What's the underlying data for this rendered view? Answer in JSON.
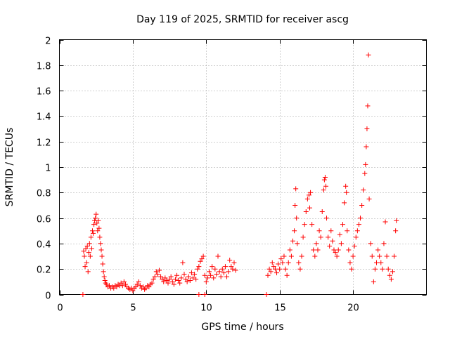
{
  "chart_data": {
    "type": "scatter",
    "title": "Day 119 of 2025, SRMTID for receiver ascg",
    "xlabel": "GPS time / hours",
    "ylabel": "SRMTID / TECUs",
    "xlim": [
      0,
      25
    ],
    "ylim": [
      0,
      2
    ],
    "xticks": [
      0,
      5,
      10,
      15,
      20
    ],
    "yticks": [
      0,
      0.2,
      0.4,
      0.6,
      0.8,
      1,
      1.2,
      1.4,
      1.6,
      1.8,
      2
    ],
    "grid": true,
    "marker": "+",
    "color": "#ff0000",
    "series": [
      {
        "name": "SRMTID",
        "points": [
          [
            1.6,
            0.0
          ],
          [
            1.65,
            0.34
          ],
          [
            1.7,
            0.3
          ],
          [
            1.75,
            0.22
          ],
          [
            1.8,
            0.36
          ],
          [
            1.85,
            0.25
          ],
          [
            1.9,
            0.38
          ],
          [
            1.95,
            0.18
          ],
          [
            2.0,
            0.33
          ],
          [
            2.05,
            0.4
          ],
          [
            2.1,
            0.3
          ],
          [
            2.15,
            0.45
          ],
          [
            2.2,
            0.36
          ],
          [
            2.25,
            0.5
          ],
          [
            2.3,
            0.48
          ],
          [
            2.35,
            0.55
          ],
          [
            2.4,
            0.58
          ],
          [
            2.45,
            0.6
          ],
          [
            2.5,
            0.63
          ],
          [
            2.55,
            0.56
          ],
          [
            2.6,
            0.5
          ],
          [
            2.65,
            0.58
          ],
          [
            2.7,
            0.52
          ],
          [
            2.75,
            0.45
          ],
          [
            2.8,
            0.4
          ],
          [
            2.85,
            0.35
          ],
          [
            2.9,
            0.3
          ],
          [
            2.95,
            0.24
          ],
          [
            3.0,
            0.18
          ],
          [
            3.05,
            0.14
          ],
          [
            3.1,
            0.11
          ],
          [
            3.15,
            0.09
          ],
          [
            3.2,
            0.08
          ],
          [
            3.3,
            0.06
          ],
          [
            3.4,
            0.07
          ],
          [
            3.5,
            0.05
          ],
          [
            3.6,
            0.06
          ],
          [
            3.7,
            0.05
          ],
          [
            3.8,
            0.07
          ],
          [
            3.9,
            0.06
          ],
          [
            4.0,
            0.08
          ],
          [
            4.1,
            0.07
          ],
          [
            4.2,
            0.09
          ],
          [
            4.3,
            0.07
          ],
          [
            4.4,
            0.1
          ],
          [
            4.5,
            0.08
          ],
          [
            4.6,
            0.06
          ],
          [
            4.7,
            0.05
          ],
          [
            4.8,
            0.04
          ],
          [
            4.9,
            0.05
          ],
          [
            5.0,
            0.03
          ],
          [
            5.1,
            0.05
          ],
          [
            5.2,
            0.06
          ],
          [
            5.3,
            0.08
          ],
          [
            5.4,
            0.1
          ],
          [
            5.5,
            0.07
          ],
          [
            5.6,
            0.05
          ],
          [
            5.7,
            0.06
          ],
          [
            5.8,
            0.04
          ],
          [
            5.9,
            0.05
          ],
          [
            6.0,
            0.07
          ],
          [
            6.1,
            0.06
          ],
          [
            6.2,
            0.08
          ],
          [
            6.3,
            0.09
          ],
          [
            6.4,
            0.12
          ],
          [
            6.5,
            0.14
          ],
          [
            6.6,
            0.18
          ],
          [
            6.7,
            0.16
          ],
          [
            6.8,
            0.19
          ],
          [
            6.9,
            0.14
          ],
          [
            7.0,
            0.12
          ],
          [
            7.1,
            0.1
          ],
          [
            7.2,
            0.13
          ],
          [
            7.3,
            0.11
          ],
          [
            7.4,
            0.09
          ],
          [
            7.5,
            0.12
          ],
          [
            7.6,
            0.14
          ],
          [
            7.7,
            0.1
          ],
          [
            7.8,
            0.08
          ],
          [
            7.9,
            0.12
          ],
          [
            8.0,
            0.15
          ],
          [
            8.1,
            0.11
          ],
          [
            8.2,
            0.09
          ],
          [
            8.3,
            0.13
          ],
          [
            8.4,
            0.25
          ],
          [
            8.5,
            0.16
          ],
          [
            8.6,
            0.12
          ],
          [
            8.7,
            0.1
          ],
          [
            8.8,
            0.14
          ],
          [
            8.9,
            0.11
          ],
          [
            9.0,
            0.17
          ],
          [
            9.1,
            0.13
          ],
          [
            9.2,
            0.16
          ],
          [
            9.3,
            0.12
          ],
          [
            9.4,
            0.2
          ],
          [
            9.5,
            0.22
          ],
          [
            9.6,
            0.26
          ],
          [
            9.7,
            0.28
          ],
          [
            9.8,
            0.3
          ],
          [
            9.5,
            0.0
          ],
          [
            9.9,
            0.0
          ],
          [
            9.9,
            0.15
          ],
          [
            10.0,
            0.1
          ],
          [
            10.1,
            0.13
          ],
          [
            10.2,
            0.18
          ],
          [
            10.3,
            0.15
          ],
          [
            10.4,
            0.22
          ],
          [
            10.5,
            0.13
          ],
          [
            10.6,
            0.2
          ],
          [
            10.7,
            0.16
          ],
          [
            10.8,
            0.3
          ],
          [
            10.9,
            0.18
          ],
          [
            11.0,
            0.14
          ],
          [
            11.1,
            0.2
          ],
          [
            11.2,
            0.17
          ],
          [
            11.3,
            0.22
          ],
          [
            11.4,
            0.14
          ],
          [
            11.5,
            0.18
          ],
          [
            11.6,
            0.27
          ],
          [
            11.7,
            0.22
          ],
          [
            11.8,
            0.2
          ],
          [
            11.9,
            0.25
          ],
          [
            12.0,
            0.19
          ],
          [
            14.1,
            0.0
          ],
          [
            14.2,
            0.15
          ],
          [
            14.3,
            0.2
          ],
          [
            14.4,
            0.18
          ],
          [
            14.5,
            0.25
          ],
          [
            14.6,
            0.22
          ],
          [
            14.7,
            0.2
          ],
          [
            14.8,
            0.17
          ],
          [
            14.9,
            0.24
          ],
          [
            15.0,
            0.2
          ],
          [
            15.1,
            0.28
          ],
          [
            15.2,
            0.25
          ],
          [
            15.3,
            0.3
          ],
          [
            15.4,
            0.2
          ],
          [
            15.5,
            0.15
          ],
          [
            15.6,
            0.25
          ],
          [
            15.7,
            0.35
          ],
          [
            15.8,
            0.3
          ],
          [
            15.9,
            0.42
          ],
          [
            16.0,
            0.5
          ],
          [
            16.05,
            0.7
          ],
          [
            16.1,
            0.83
          ],
          [
            16.15,
            0.6
          ],
          [
            16.2,
            0.4
          ],
          [
            16.3,
            0.25
          ],
          [
            16.4,
            0.2
          ],
          [
            16.5,
            0.3
          ],
          [
            16.6,
            0.45
          ],
          [
            16.7,
            0.55
          ],
          [
            16.8,
            0.65
          ],
          [
            16.9,
            0.75
          ],
          [
            17.0,
            0.78
          ],
          [
            17.05,
            0.68
          ],
          [
            17.1,
            0.8
          ],
          [
            17.2,
            0.55
          ],
          [
            17.3,
            0.35
          ],
          [
            17.4,
            0.3
          ],
          [
            17.5,
            0.4
          ],
          [
            17.6,
            0.35
          ],
          [
            17.7,
            0.5
          ],
          [
            17.8,
            0.45
          ],
          [
            17.9,
            0.65
          ],
          [
            18.0,
            0.82
          ],
          [
            18.05,
            0.9
          ],
          [
            18.1,
            0.92
          ],
          [
            18.15,
            0.85
          ],
          [
            18.2,
            0.6
          ],
          [
            18.3,
            0.45
          ],
          [
            18.4,
            0.38
          ],
          [
            18.5,
            0.5
          ],
          [
            18.6,
            0.42
          ],
          [
            18.7,
            0.35
          ],
          [
            18.8,
            0.33
          ],
          [
            18.9,
            0.3
          ],
          [
            19.0,
            0.35
          ],
          [
            19.1,
            0.47
          ],
          [
            19.2,
            0.4
          ],
          [
            19.3,
            0.55
          ],
          [
            19.4,
            0.72
          ],
          [
            19.5,
            0.85
          ],
          [
            19.55,
            0.8
          ],
          [
            19.6,
            0.5
          ],
          [
            19.7,
            0.35
          ],
          [
            19.8,
            0.25
          ],
          [
            19.9,
            0.2
          ],
          [
            20.0,
            0.3
          ],
          [
            20.1,
            0.38
          ],
          [
            20.2,
            0.45
          ],
          [
            20.3,
            0.5
          ],
          [
            20.4,
            0.55
          ],
          [
            20.5,
            0.6
          ],
          [
            20.6,
            0.7
          ],
          [
            20.7,
            0.82
          ],
          [
            20.8,
            0.95
          ],
          [
            20.85,
            1.02
          ],
          [
            20.9,
            1.16
          ],
          [
            20.95,
            1.3
          ],
          [
            21.0,
            1.48
          ],
          [
            21.05,
            1.88
          ],
          [
            21.1,
            0.75
          ],
          [
            21.2,
            0.4
          ],
          [
            21.3,
            0.3
          ],
          [
            21.4,
            0.1
          ],
          [
            21.5,
            0.2
          ],
          [
            21.6,
            0.25
          ],
          [
            21.7,
            0.35
          ],
          [
            21.8,
            0.3
          ],
          [
            21.9,
            0.25
          ],
          [
            22.0,
            0.2
          ],
          [
            22.1,
            0.4
          ],
          [
            22.2,
            0.57
          ],
          [
            22.3,
            0.3
          ],
          [
            22.4,
            0.2
          ],
          [
            22.5,
            0.15
          ],
          [
            22.6,
            0.12
          ],
          [
            22.7,
            0.18
          ],
          [
            22.8,
            0.3
          ],
          [
            22.9,
            0.5
          ],
          [
            22.95,
            0.58
          ]
        ]
      }
    ]
  }
}
